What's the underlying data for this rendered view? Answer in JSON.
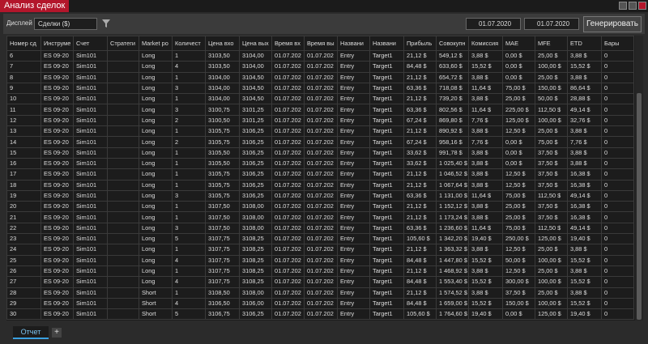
{
  "window": {
    "title": "Анализ сделок"
  },
  "toolbar": {
    "display_label": "Дисплей",
    "display_value": "Сделки ($)",
    "date_from": "01.07.2020",
    "date_to": "01.07.2020",
    "generate_button": "Генерировать"
  },
  "table": {
    "columns": [
      "Номер сд",
      "Инструме",
      "Счет",
      "Стратеги",
      "Market po",
      "Количест",
      "Цена вхо",
      "Цена вых",
      "Время вх",
      "Время вы",
      "Названи",
      "Названи",
      "Прибыль",
      "Совокупн",
      "Комиссия",
      "MAE",
      "MFE",
      "ETD",
      "Бары"
    ],
    "rows": [
      [
        "6",
        "ES 09-20",
        "Sim101",
        "",
        "Long",
        "1",
        "3103,50",
        "3104,00",
        "01.07.202",
        "01.07.202",
        "Entry",
        "Target1",
        "21,12 $",
        "549,12 $",
        "3,88 $",
        "0,00 $",
        "25,00 $",
        "3,88 $",
        "0"
      ],
      [
        "7",
        "ES 09-20",
        "Sim101",
        "",
        "Long",
        "4",
        "3103,50",
        "3104,00",
        "01.07.202",
        "01.07.202",
        "Entry",
        "Target1",
        "84,48 $",
        "633,60 $",
        "15,52 $",
        "0,00 $",
        "100,00 $",
        "15,52 $",
        "0"
      ],
      [
        "8",
        "ES 09-20",
        "Sim101",
        "",
        "Long",
        "1",
        "3104,00",
        "3104,50",
        "01.07.202",
        "01.07.202",
        "Entry",
        "Target1",
        "21,12 $",
        "654,72 $",
        "3,88 $",
        "0,00 $",
        "25,00 $",
        "3,88 $",
        "0"
      ],
      [
        "9",
        "ES 09-20",
        "Sim101",
        "",
        "Long",
        "3",
        "3104,00",
        "3104,50",
        "01.07.202",
        "01.07.202",
        "Entry",
        "Target1",
        "63,36 $",
        "718,08 $",
        "11,64 $",
        "75,00 $",
        "150,00 $",
        "86,64 $",
        "0"
      ],
      [
        "10",
        "ES 09-20",
        "Sim101",
        "",
        "Long",
        "1",
        "3104,00",
        "3104,50",
        "01.07.202",
        "01.07.202",
        "Entry",
        "Target1",
        "21,12 $",
        "739,20 $",
        "3,88 $",
        "25,00 $",
        "50,00 $",
        "28,88 $",
        "0"
      ],
      [
        "11",
        "ES 09-20",
        "Sim101",
        "",
        "Long",
        "3",
        "3100,75",
        "3101,25",
        "01.07.202",
        "01.07.202",
        "Entry",
        "Target1",
        "63,36 $",
        "802,56 $",
        "11,64 $",
        "225,00 $",
        "112,50 $",
        "49,14 $",
        "0"
      ],
      [
        "12",
        "ES 09-20",
        "Sim101",
        "",
        "Long",
        "2",
        "3100,50",
        "3101,25",
        "01.07.202",
        "01.07.202",
        "Entry",
        "Target1",
        "67,24 $",
        "869,80 $",
        "7,76 $",
        "125,00 $",
        "100,00 $",
        "32,76 $",
        "0"
      ],
      [
        "13",
        "ES 09-20",
        "Sim101",
        "",
        "Long",
        "1",
        "3105,75",
        "3106,25",
        "01.07.202",
        "01.07.202",
        "Entry",
        "Target1",
        "21,12 $",
        "890,92 $",
        "3,88 $",
        "12,50 $",
        "25,00 $",
        "3,88 $",
        "0"
      ],
      [
        "14",
        "ES 09-20",
        "Sim101",
        "",
        "Long",
        "2",
        "3105,75",
        "3106,25",
        "01.07.202",
        "01.07.202",
        "Entry",
        "Target1",
        "67,24 $",
        "958,16 $",
        "7,76 $",
        "0,00 $",
        "75,00 $",
        "7,76 $",
        "0"
      ],
      [
        "15",
        "ES 09-20",
        "Sim101",
        "",
        "Long",
        "1",
        "3105,50",
        "3106,25",
        "01.07.202",
        "01.07.202",
        "Entry",
        "Target1",
        "33,62 $",
        "991,78 $",
        "3,88 $",
        "0,00 $",
        "37,50 $",
        "3,88 $",
        "0"
      ],
      [
        "16",
        "ES 09-20",
        "Sim101",
        "",
        "Long",
        "1",
        "3105,50",
        "3106,25",
        "01.07.202",
        "01.07.202",
        "Entry",
        "Target1",
        "33,62 $",
        "1 025,40 $",
        "3,88 $",
        "0,00 $",
        "37,50 $",
        "3,88 $",
        "0"
      ],
      [
        "17",
        "ES 09-20",
        "Sim101",
        "",
        "Long",
        "1",
        "3105,75",
        "3106,25",
        "01.07.202",
        "01.07.202",
        "Entry",
        "Target1",
        "21,12 $",
        "1 046,52 $",
        "3,88 $",
        "12,50 $",
        "37,50 $",
        "16,38 $",
        "0"
      ],
      [
        "18",
        "ES 09-20",
        "Sim101",
        "",
        "Long",
        "1",
        "3105,75",
        "3106,25",
        "01.07.202",
        "01.07.202",
        "Entry",
        "Target1",
        "21,12 $",
        "1 067,64 $",
        "3,88 $",
        "12,50 $",
        "37,50 $",
        "16,38 $",
        "0"
      ],
      [
        "19",
        "ES 09-20",
        "Sim101",
        "",
        "Long",
        "3",
        "3105,75",
        "3106,25",
        "01.07.202",
        "01.07.202",
        "Entry",
        "Target1",
        "63,36 $",
        "1 131,00 $",
        "11,64 $",
        "75,00 $",
        "112,50 $",
        "49,14 $",
        "0"
      ],
      [
        "20",
        "ES 09-20",
        "Sim101",
        "",
        "Long",
        "1",
        "3107,50",
        "3108,00",
        "01.07.202",
        "01.07.202",
        "Entry",
        "Target1",
        "21,12 $",
        "1 152,12 $",
        "3,88 $",
        "25,00 $",
        "37,50 $",
        "16,38 $",
        "0"
      ],
      [
        "21",
        "ES 09-20",
        "Sim101",
        "",
        "Long",
        "1",
        "3107,50",
        "3108,00",
        "01.07.202",
        "01.07.202",
        "Entry",
        "Target1",
        "21,12 $",
        "1 173,24 $",
        "3,88 $",
        "25,00 $",
        "37,50 $",
        "16,38 $",
        "0"
      ],
      [
        "22",
        "ES 09-20",
        "Sim101",
        "",
        "Long",
        "3",
        "3107,50",
        "3108,00",
        "01.07.202",
        "01.07.202",
        "Entry",
        "Target1",
        "63,36 $",
        "1 236,60 $",
        "11,64 $",
        "75,00 $",
        "112,50 $",
        "49,14 $",
        "0"
      ],
      [
        "23",
        "ES 09-20",
        "Sim101",
        "",
        "Long",
        "5",
        "3107,75",
        "3108,25",
        "01.07.202",
        "01.07.202",
        "Entry",
        "Target1",
        "105,60 $",
        "1 342,20 $",
        "19,40 $",
        "250,00 $",
        "125,00 $",
        "19,40 $",
        "0"
      ],
      [
        "24",
        "ES 09-20",
        "Sim101",
        "",
        "Long",
        "1",
        "3107,75",
        "3108,25",
        "01.07.202",
        "01.07.202",
        "Entry",
        "Target1",
        "21,12 $",
        "1 363,32 $",
        "3,88 $",
        "12,50 $",
        "25,00 $",
        "3,88 $",
        "0"
      ],
      [
        "25",
        "ES 09-20",
        "Sim101",
        "",
        "Long",
        "4",
        "3107,75",
        "3108,25",
        "01.07.202",
        "01.07.202",
        "Entry",
        "Target1",
        "84,48 $",
        "1 447,80 $",
        "15,52 $",
        "50,00 $",
        "100,00 $",
        "15,52 $",
        "0"
      ],
      [
        "26",
        "ES 09-20",
        "Sim101",
        "",
        "Long",
        "1",
        "3107,75",
        "3108,25",
        "01.07.202",
        "01.07.202",
        "Entry",
        "Target1",
        "21,12 $",
        "1 468,92 $",
        "3,88 $",
        "12,50 $",
        "25,00 $",
        "3,88 $",
        "0"
      ],
      [
        "27",
        "ES 09-20",
        "Sim101",
        "",
        "Long",
        "4",
        "3107,75",
        "3108,25",
        "01.07.202",
        "01.07.202",
        "Entry",
        "Target1",
        "84,48 $",
        "1 553,40 $",
        "15,52 $",
        "300,00 $",
        "100,00 $",
        "15,52 $",
        "0"
      ],
      [
        "28",
        "ES 09-20",
        "Sim101",
        "",
        "Short",
        "1",
        "3108,50",
        "3108,00",
        "01.07.202",
        "01.07.202",
        "Entry",
        "Target1",
        "21,12 $",
        "1 574,52 $",
        "3,88 $",
        "37,50 $",
        "25,00 $",
        "3,88 $",
        "0"
      ],
      [
        "29",
        "ES 09-20",
        "Sim101",
        "",
        "Short",
        "4",
        "3106,50",
        "3106,00",
        "01.07.202",
        "01.07.202",
        "Entry",
        "Target1",
        "84,48 $",
        "1 659,00 $",
        "15,52 $",
        "150,00 $",
        "100,00 $",
        "15,52 $",
        "0"
      ],
      [
        "30",
        "ES 09-20",
        "Sim101",
        "",
        "Short",
        "5",
        "3106,75",
        "3106,25",
        "01.07.202",
        "01.07.202",
        "Entry",
        "Target1",
        "105,60 $",
        "1 764,60 $",
        "19,40 $",
        "0,00 $",
        "125,00 $",
        "19,40 $",
        "0"
      ]
    ]
  },
  "tabs": {
    "items": [
      "Отчет"
    ],
    "add": "+"
  }
}
